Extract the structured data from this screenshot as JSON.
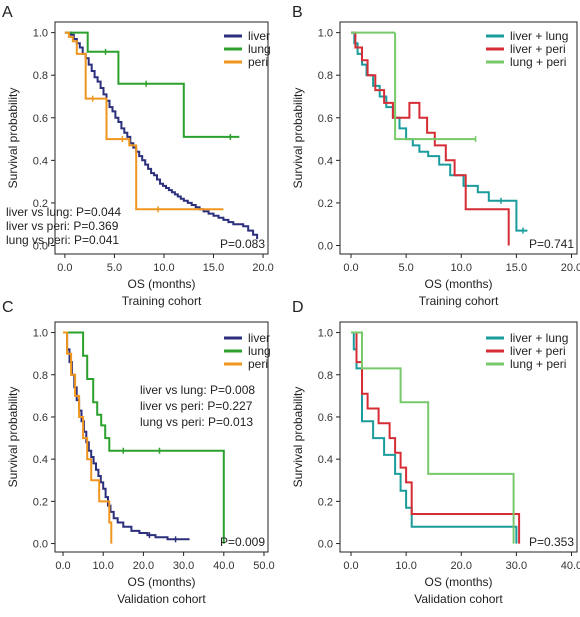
{
  "chart_data": [
    {
      "panel": "A",
      "type": "line",
      "subtype": "kaplan-meier step",
      "xlabel": "OS (months)",
      "ylabel": "Survival probability",
      "cohort": "Training cohort",
      "xlim": [
        -1,
        20.5
      ],
      "ylim": [
        -0.04,
        1.05
      ],
      "xticks": [
        "0.0",
        "5.0",
        "10.0",
        "15.0",
        "20.0"
      ],
      "xtick_values": [
        0,
        5,
        10,
        15,
        20
      ],
      "yticks": [
        "0.0",
        "0.2",
        "0.4",
        "0.6",
        "0.8",
        "1.0"
      ],
      "ytick_values": [
        0,
        0.2,
        0.4,
        0.6,
        0.8,
        1.0
      ],
      "legend_position": "top-right",
      "annotations": [
        "liver vs lung: P=0.044",
        "liver vs peri: P=0.369",
        "lung vs peri: P=0.041"
      ],
      "pvalue": "P=0.083",
      "series": [
        {
          "name": "liver",
          "color": "#2b2f7c",
          "x": [
            0,
            0.6,
            0.9,
            1.2,
            1.5,
            1.8,
            2.1,
            2.4,
            2.7,
            3.0,
            3.3,
            3.6,
            3.9,
            4.2,
            4.5,
            4.8,
            5.1,
            5.4,
            5.7,
            6.0,
            6.3,
            6.6,
            6.9,
            7.2,
            7.5,
            7.8,
            8.1,
            8.4,
            8.7,
            9.0,
            9.3,
            9.6,
            9.9,
            10.2,
            10.5,
            10.8,
            11.1,
            11.4,
            11.7,
            12.0,
            12.4,
            12.8,
            13.2,
            13.6,
            14.0,
            14.5,
            15.0,
            15.5,
            16.0,
            16.5,
            17.0,
            17.5,
            18.0,
            18.5,
            19.0,
            19.4
          ],
          "y": [
            1.0,
            0.99,
            0.97,
            0.95,
            0.93,
            0.9,
            0.88,
            0.85,
            0.82,
            0.79,
            0.77,
            0.74,
            0.71,
            0.68,
            0.65,
            0.63,
            0.6,
            0.58,
            0.55,
            0.53,
            0.51,
            0.48,
            0.46,
            0.44,
            0.42,
            0.4,
            0.38,
            0.36,
            0.34,
            0.33,
            0.31,
            0.29,
            0.28,
            0.27,
            0.26,
            0.25,
            0.24,
            0.23,
            0.22,
            0.21,
            0.2,
            0.19,
            0.18,
            0.17,
            0.16,
            0.15,
            0.14,
            0.13,
            0.12,
            0.11,
            0.1,
            0.1,
            0.09,
            0.07,
            0.05,
            0.03
          ],
          "censor_x": [],
          "censor_y": []
        },
        {
          "name": "lung",
          "color": "#2ca02c",
          "x": [
            0,
            2.3,
            5.4,
            8.2,
            12.0,
            17.6
          ],
          "y": [
            1.0,
            0.91,
            0.76,
            0.76,
            0.51,
            0.51
          ],
          "censor_x": [
            4.1,
            8.2,
            16.7
          ],
          "censor_y": [
            0.91,
            0.76,
            0.51
          ]
        },
        {
          "name": "peri",
          "color": "#f0961e",
          "x": [
            0,
            0.4,
            0.8,
            1.2,
            2.1,
            3.5,
            4.2,
            5.1,
            6.5,
            7.2,
            16.0
          ],
          "y": [
            1.0,
            0.98,
            0.96,
            0.9,
            0.69,
            0.69,
            0.5,
            0.5,
            0.47,
            0.17,
            0.17
          ],
          "censor_x": [
            2.8,
            5.8,
            9.4
          ],
          "censor_y": [
            0.69,
            0.5,
            0.17
          ]
        }
      ]
    },
    {
      "panel": "B",
      "type": "line",
      "subtype": "kaplan-meier step",
      "xlabel": "OS (months)",
      "ylabel": "Survival probability",
      "cohort": "Training cohort",
      "xlim": [
        -1,
        20.5
      ],
      "ylim": [
        -0.04,
        1.05
      ],
      "xticks": [
        "0.0",
        "5.0",
        "10.0",
        "15.0",
        "20.0"
      ],
      "xtick_values": [
        0,
        5,
        10,
        15,
        20
      ],
      "yticks": [
        "0.0",
        "0.2",
        "0.4",
        "0.6",
        "0.8",
        "1.0"
      ],
      "ytick_values": [
        0,
        0.2,
        0.4,
        0.6,
        0.8,
        1.0
      ],
      "legend_position": "top-right",
      "annotations": [],
      "pvalue": "P=0.741",
      "series": [
        {
          "name": "liver + lung",
          "color": "#1a9c9c",
          "x": [
            0,
            0.3,
            0.6,
            1.0,
            1.4,
            2.0,
            2.6,
            3.2,
            3.8,
            4.4,
            5.0,
            5.6,
            6.2,
            7.0,
            8.0,
            9.0,
            10.2,
            11.5,
            12.5,
            14.0,
            15.0,
            16.0
          ],
          "y": [
            1.0,
            0.95,
            0.9,
            0.85,
            0.8,
            0.75,
            0.7,
            0.65,
            0.6,
            0.55,
            0.5,
            0.47,
            0.44,
            0.42,
            0.38,
            0.33,
            0.28,
            0.25,
            0.21,
            0.21,
            0.07,
            0.07
          ],
          "censor_x": [
            13.6,
            15.6
          ],
          "censor_y": [
            0.21,
            0.07
          ]
        },
        {
          "name": "liver + peri",
          "color": "#d62c35",
          "x": [
            0,
            0.4,
            1.0,
            1.5,
            2.2,
            3.0,
            3.8,
            4.5,
            5.3,
            6.2,
            6.9,
            7.6,
            8.6,
            9.4,
            10.4,
            14.3,
            14.3
          ],
          "y": [
            1.0,
            0.93,
            0.87,
            0.8,
            0.73,
            0.67,
            0.6,
            0.6,
            0.67,
            0.6,
            0.53,
            0.47,
            0.4,
            0.33,
            0.17,
            0.17,
            0.0
          ],
          "censor_x": [],
          "censor_y": []
        },
        {
          "name": "lung + peri",
          "color": "#77c96a",
          "x": [
            0,
            4.0,
            4.0,
            11.3
          ],
          "y": [
            1.0,
            1.0,
            0.5,
            0.5
          ],
          "censor_x": [
            11.3
          ],
          "censor_y": [
            0.5
          ]
        }
      ]
    },
    {
      "panel": "C",
      "type": "line",
      "subtype": "kaplan-meier step",
      "xlabel": "OS (months)",
      "ylabel": "Survival probability",
      "cohort": "Validation cohort",
      "xlim": [
        -2,
        51
      ],
      "ylim": [
        -0.04,
        1.05
      ],
      "xticks": [
        "0.0",
        "10.0",
        "20.0",
        "30.0",
        "40.0",
        "50.0"
      ],
      "xtick_values": [
        0,
        10,
        20,
        30,
        40,
        50
      ],
      "yticks": [
        "0.0",
        "0.2",
        "0.4",
        "0.6",
        "0.8",
        "1.0"
      ],
      "ytick_values": [
        0,
        0.2,
        0.4,
        0.6,
        0.8,
        1.0
      ],
      "legend_position": "top-right",
      "annotations": [
        "liver vs lung: P=0.008",
        "liver vs peri: P=0.227",
        "lung vs peri: P=0.013"
      ],
      "pvalue": "P=0.009",
      "series": [
        {
          "name": "liver",
          "color": "#2b2f7c",
          "x": [
            0,
            1.0,
            1.6,
            2.2,
            2.8,
            3.4,
            4.0,
            4.6,
            5.2,
            5.8,
            6.4,
            7.0,
            7.6,
            8.2,
            8.8,
            9.4,
            10.0,
            10.6,
            11.2,
            11.8,
            12.6,
            13.6,
            15.0,
            17.0,
            19.0,
            21.0,
            23.0,
            26.0,
            29.0,
            31.5
          ],
          "y": [
            1.0,
            0.92,
            0.86,
            0.8,
            0.74,
            0.68,
            0.63,
            0.58,
            0.53,
            0.48,
            0.44,
            0.41,
            0.38,
            0.35,
            0.32,
            0.29,
            0.26,
            0.22,
            0.18,
            0.15,
            0.12,
            0.1,
            0.08,
            0.06,
            0.05,
            0.04,
            0.03,
            0.02,
            0.02,
            0.02
          ],
          "censor_x": [
            21.5,
            28.0
          ],
          "censor_y": [
            0.04,
            0.02
          ]
        },
        {
          "name": "lung",
          "color": "#2ca02c",
          "x": [
            0,
            5.0,
            6.0,
            7.5,
            8.5,
            9.5,
            10.5,
            11.5,
            12.5,
            40.0,
            40.0
          ],
          "y": [
            1.0,
            0.89,
            0.78,
            0.67,
            0.61,
            0.56,
            0.5,
            0.44,
            0.44,
            0.44,
            0.0
          ],
          "censor_x": [
            15.0,
            24.0
          ],
          "censor_y": [
            0.44,
            0.44
          ]
        },
        {
          "name": "peri",
          "color": "#f0961e",
          "x": [
            0,
            1.0,
            2.0,
            3.0,
            4.0,
            5.0,
            6.0,
            7.0,
            9.0,
            11.5,
            12.0,
            12.0
          ],
          "y": [
            1.0,
            0.9,
            0.8,
            0.7,
            0.6,
            0.5,
            0.4,
            0.3,
            0.2,
            0.1,
            0.1,
            0.0
          ],
          "censor_x": [],
          "censor_y": []
        }
      ]
    },
    {
      "panel": "D",
      "type": "line",
      "subtype": "kaplan-meier step",
      "xlabel": "OS (months)",
      "ylabel": "Survival probability",
      "cohort": "Validation cohort",
      "xlim": [
        -2,
        41
      ],
      "ylim": [
        -0.04,
        1.05
      ],
      "xticks": [
        "0.0",
        "10.0",
        "20.0",
        "30.0",
        "40.0"
      ],
      "xtick_values": [
        0,
        10,
        20,
        30,
        40
      ],
      "yticks": [
        "0.0",
        "0.2",
        "0.4",
        "0.6",
        "0.8",
        "1.0"
      ],
      "ytick_values": [
        0,
        0.2,
        0.4,
        0.6,
        0.8,
        1.0
      ],
      "legend_position": "top-right",
      "annotations": [],
      "pvalue": "P=0.353",
      "series": [
        {
          "name": "liver + lung",
          "color": "#1a9c9c",
          "x": [
            0,
            0.5,
            1.0,
            2.0,
            4.0,
            6.0,
            8.0,
            9.0,
            10.0,
            11.0,
            30.0,
            30.0
          ],
          "y": [
            1.0,
            0.92,
            0.83,
            0.58,
            0.5,
            0.42,
            0.33,
            0.25,
            0.17,
            0.08,
            0.08,
            0.0
          ],
          "censor_x": [],
          "censor_y": []
        },
        {
          "name": "liver + peri",
          "color": "#d62c35",
          "x": [
            0,
            1.0,
            2.0,
            3.0,
            5.0,
            7.0,
            8.0,
            9.0,
            10.0,
            11.0,
            16.0,
            30.5,
            30.5
          ],
          "y": [
            1.0,
            0.86,
            0.71,
            0.64,
            0.57,
            0.5,
            0.43,
            0.36,
            0.29,
            0.14,
            0.14,
            0.07,
            0.0
          ],
          "censor_x": [],
          "censor_y": []
        },
        {
          "name": "lung + peri",
          "color": "#77c96a",
          "x": [
            0,
            2.0,
            4.0,
            9.0,
            14.0,
            29.5,
            29.5
          ],
          "y": [
            1.0,
            0.83,
            0.83,
            0.67,
            0.33,
            0.33,
            0.0
          ],
          "censor_x": [],
          "censor_y": []
        }
      ]
    }
  ]
}
